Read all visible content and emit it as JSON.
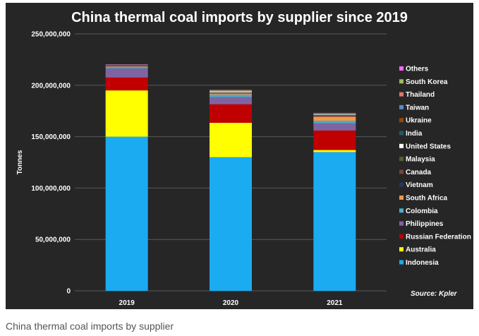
{
  "caption": "China thermal coal imports by supplier",
  "chart_data": {
    "type": "bar",
    "stacked": true,
    "title": "China thermal coal imports by supplier since 2019",
    "xlabel": "",
    "ylabel": "Tonnes",
    "ylim": [
      0,
      250000000
    ],
    "yticks": [
      0,
      50000000,
      100000000,
      150000000,
      200000000,
      250000000
    ],
    "ytick_labels": [
      "0",
      "50,000,000",
      "100,000,000",
      "150,000,000",
      "200,000,000",
      "250,000,000"
    ],
    "grid": "horizontal",
    "legend_position": "right",
    "source": "Source: Kpler",
    "categories": [
      "2019",
      "2020",
      "2021"
    ],
    "series": [
      {
        "name": "Indonesia",
        "color": "#1aabf0",
        "values": [
          150000000,
          130000000,
          135000000
        ]
      },
      {
        "name": "Australia",
        "color": "#ffff00",
        "values": [
          45000000,
          33500000,
          2000000
        ]
      },
      {
        "name": "Russian Federation",
        "color": "#c00000",
        "values": [
          12500000,
          18000000,
          19000000
        ]
      },
      {
        "name": "Philippines",
        "color": "#8064a2",
        "values": [
          9000000,
          7000000,
          7000000
        ]
      },
      {
        "name": "Colombia",
        "color": "#4bacc6",
        "values": [
          1500000,
          2500000,
          2500000
        ]
      },
      {
        "name": "South Africa",
        "color": "#f79646",
        "values": [
          500000,
          1000000,
          4000000
        ]
      },
      {
        "name": "Vietnam",
        "color": "#1f3864",
        "values": [
          300000,
          200000,
          200000
        ]
      },
      {
        "name": "Canada",
        "color": "#7f3f3f",
        "values": [
          300000,
          600000,
          1200000
        ]
      },
      {
        "name": "Malaysia",
        "color": "#4f6228",
        "values": [
          100000,
          300000,
          300000
        ]
      },
      {
        "name": "United States",
        "color": "#ffffff",
        "values": [
          100000,
          1000000,
          700000
        ]
      },
      {
        "name": "India",
        "color": "#215968",
        "values": [
          100000,
          100000,
          200000
        ]
      },
      {
        "name": "Ukraine",
        "color": "#974706",
        "values": [
          100000,
          100000,
          100000
        ]
      },
      {
        "name": "Taiwan",
        "color": "#5b8bc6",
        "values": [
          200000,
          200000,
          200000
        ]
      },
      {
        "name": "Thailand",
        "color": "#d9786c",
        "values": [
          100000,
          200000,
          200000
        ]
      },
      {
        "name": "South Korea",
        "color": "#9bbb59",
        "values": [
          200000,
          600000,
          300000
        ]
      },
      {
        "name": "Others",
        "color": "#ff66ff",
        "values": [
          300000,
          200000,
          200000
        ]
      }
    ]
  }
}
